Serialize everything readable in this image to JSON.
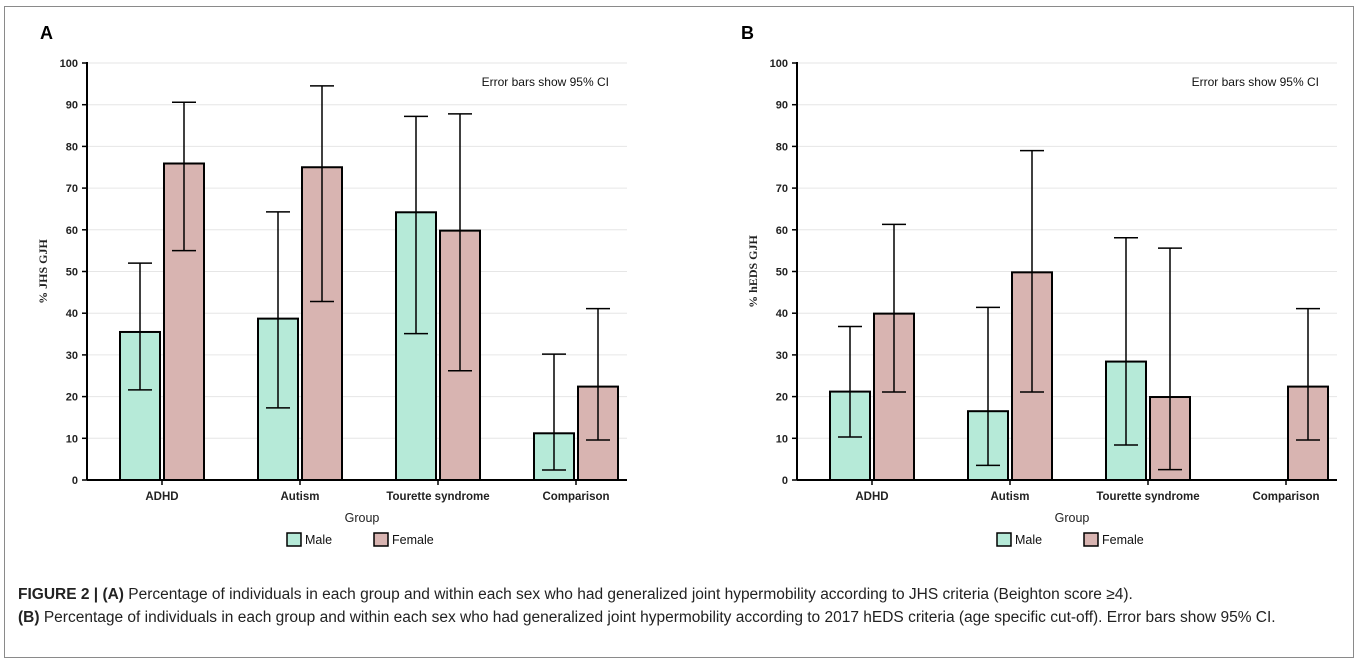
{
  "figure": {
    "caption_label": "FIGURE 2 |",
    "caption_part_a_label": "(A)",
    "caption_part_a_text": " Percentage of individuals in each group and within each sex who had generalized joint hypermobility according to JHS criteria (Beighton score ≥4). ",
    "caption_part_b_label": "(B)",
    "caption_part_b_text": " Percentage of individuals in each group and within each sex who had generalized joint hypermobility according to 2017 hEDS criteria (age specific cut-off). Error bars show 95% CI."
  },
  "colors": {
    "male": "#b6ead8",
    "female": "#d8b4b1",
    "outline": "#000000"
  },
  "legend": {
    "male_label": "Male",
    "female_label": "Female"
  },
  "chart_data": [
    {
      "panel": "A",
      "type": "bar",
      "ylabel": "% JHS GJH",
      "xlabel": "Group",
      "note": "Error bars show 95% CI",
      "ylim": [
        0,
        100
      ],
      "yticks": [
        0,
        10,
        20,
        30,
        40,
        50,
        60,
        70,
        80,
        90,
        100
      ],
      "grid": true,
      "legend_position": "bottom-center",
      "categories": [
        "ADHD",
        "Autism",
        "Tourette syndrome",
        "Comparison"
      ],
      "series": [
        {
          "name": "Male",
          "values": [
            35.5,
            38.7,
            64.2,
            11.2
          ],
          "ci_low": [
            21.6,
            17.3,
            35.1,
            2.4
          ],
          "ci_high": [
            52.0,
            64.3,
            87.2,
            30.2
          ]
        },
        {
          "name": "Female",
          "values": [
            75.9,
            75.0,
            59.8,
            22.4
          ],
          "ci_low": [
            55.0,
            42.8,
            26.2,
            9.6
          ],
          "ci_high": [
            90.6,
            94.5,
            87.8,
            41.1
          ]
        }
      ]
    },
    {
      "panel": "B",
      "type": "bar",
      "ylabel": "% hEDS GJH",
      "xlabel": "Group",
      "note": "Error bars show 95% CI",
      "ylim": [
        0,
        100
      ],
      "yticks": [
        0,
        10,
        20,
        30,
        40,
        50,
        60,
        70,
        80,
        90,
        100
      ],
      "grid": true,
      "legend_position": "bottom-center",
      "categories": [
        "ADHD",
        "Autism",
        "Tourette syndrome",
        "Comparison"
      ],
      "series": [
        {
          "name": "Male",
          "values": [
            21.2,
            16.5,
            28.4,
            null
          ],
          "ci_low": [
            10.3,
            3.5,
            8.4,
            null
          ],
          "ci_high": [
            36.8,
            41.4,
            58.1,
            null
          ]
        },
        {
          "name": "Female",
          "values": [
            39.9,
            49.8,
            19.9,
            22.4
          ],
          "ci_low": [
            21.1,
            21.1,
            2.5,
            9.6
          ],
          "ci_high": [
            61.3,
            79.0,
            55.6,
            41.1
          ]
        }
      ]
    }
  ]
}
